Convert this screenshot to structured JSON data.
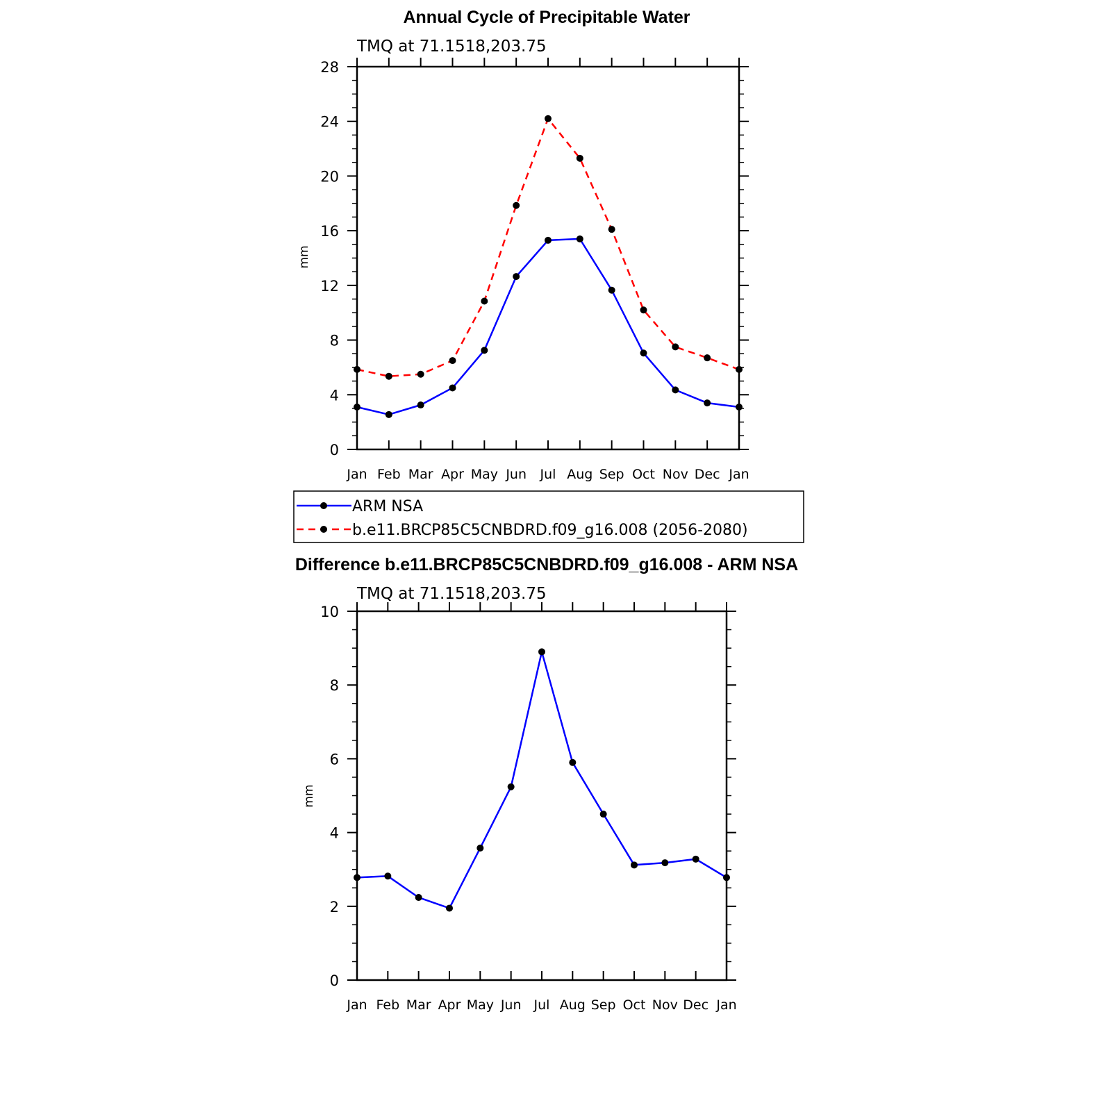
{
  "chart_data": [
    {
      "type": "line",
      "title": "Annual Cycle of Precipitable Water",
      "subtitle": "TMQ at 71.1518,203.75",
      "xlabel": "",
      "ylabel": "mm",
      "ylim": [
        0,
        28
      ],
      "yticks": [
        "0",
        "4",
        "8",
        "12",
        "16",
        "20",
        "24",
        "28"
      ],
      "categories": [
        "Jan",
        "Feb",
        "Mar",
        "Apr",
        "May",
        "Jun",
        "Jul",
        "Aug",
        "Sep",
        "Oct",
        "Nov",
        "Dec",
        "Jan"
      ],
      "series": [
        {
          "name": "ARM NSA",
          "color": "#0000ff",
          "style": "solid",
          "marker": "dot",
          "values": [
            3.1,
            2.55,
            3.25,
            4.5,
            7.25,
            12.65,
            15.3,
            15.4,
            11.65,
            7.05,
            4.35,
            3.4,
            3.1
          ]
        },
        {
          "name": "b.e11.BRCP85C5CNBDRD.f09_g16.008 (2056-2080)",
          "color": "#ff0000",
          "style": "dashed",
          "marker": "dot",
          "values": [
            5.85,
            5.35,
            5.5,
            6.5,
            10.85,
            17.85,
            24.2,
            21.3,
            16.1,
            10.2,
            7.5,
            6.7,
            5.85
          ]
        }
      ],
      "legend": "below"
    },
    {
      "type": "line",
      "title": "Difference b.e11.BRCP85C5CNBDRD.f09_g16.008 - ARM NSA",
      "subtitle": "TMQ at 71.1518,203.75",
      "xlabel": "",
      "ylabel": "mm",
      "ylim": [
        0,
        10
      ],
      "yticks": [
        "0",
        "2",
        "4",
        "6",
        "8",
        "10"
      ],
      "categories": [
        "Jan",
        "Feb",
        "Mar",
        "Apr",
        "May",
        "Jun",
        "Jul",
        "Aug",
        "Sep",
        "Oct",
        "Nov",
        "Dec",
        "Jan"
      ],
      "series": [
        {
          "color": "#0000ff",
          "style": "solid",
          "marker": "dot",
          "values": [
            2.78,
            2.82,
            2.24,
            1.95,
            3.58,
            5.24,
            8.9,
            5.9,
            4.5,
            3.12,
            3.18,
            3.28,
            2.78
          ]
        }
      ]
    }
  ]
}
